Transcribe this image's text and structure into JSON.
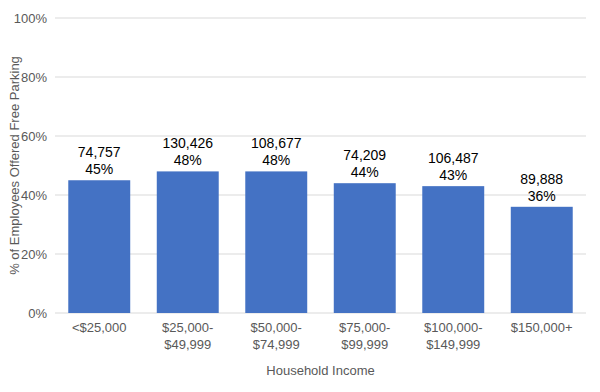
{
  "chart_data": {
    "type": "bar",
    "x_label": "Household Income",
    "y_label": "% of Employees Offered Free Parking",
    "categories": [
      "<$25,000",
      "$25,000-$49,999",
      "$50,000-$74,999",
      "$75,000-$99,999",
      "$100,000-$149,999",
      "$150,000+"
    ],
    "values": [
      45,
      48,
      48,
      44,
      43,
      36
    ],
    "value_labels": [
      "45%",
      "48%",
      "48%",
      "44%",
      "43%",
      "36%"
    ],
    "counts": [
      74757,
      130426,
      108677,
      74209,
      106487,
      89888
    ],
    "count_labels": [
      "74,757",
      "130,426",
      "108,677",
      "74,209",
      "106,487",
      "89,888"
    ],
    "color": "#4472c4",
    "ylim": [
      0,
      100
    ],
    "yticks": [
      {
        "value": 0,
        "label": "0%"
      },
      {
        "value": 20,
        "label": "20%"
      },
      {
        "value": 40,
        "label": "40%"
      },
      {
        "value": 60,
        "label": "60%"
      },
      {
        "value": 80,
        "label": "80%"
      },
      {
        "value": 100,
        "label": "100%"
      }
    ],
    "grid": true,
    "data_labels": true
  }
}
